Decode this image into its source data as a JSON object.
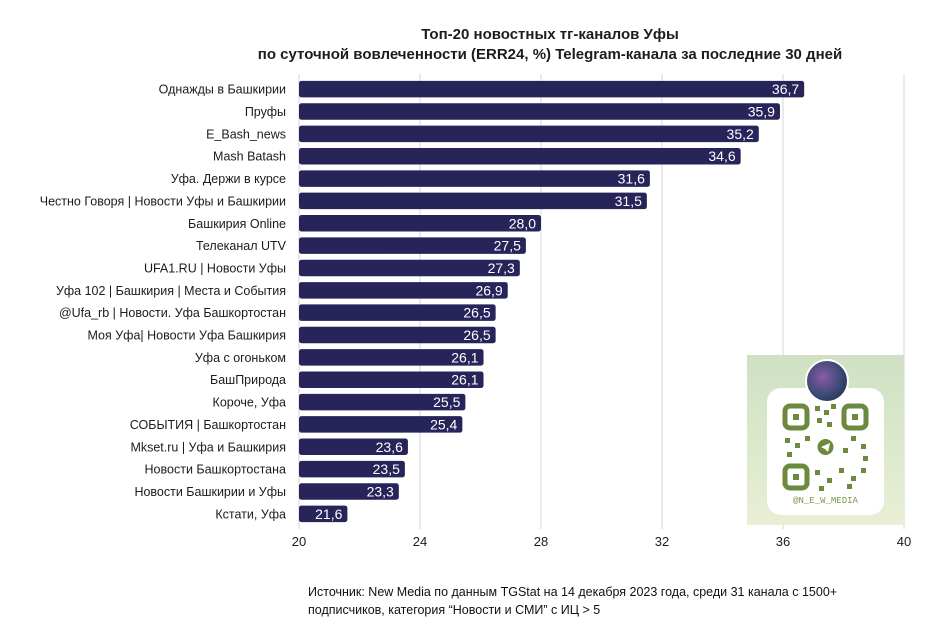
{
  "title_line1": "Топ-20 новостных тг-каналов Уфы",
  "title_line2": "по суточной вовлеченности (ERR24, %) Telegram-канала за последние 30 дней",
  "source_text": "Источник: New Media по данным TGStat на 14 декабря 2023 года, среди 31 канала с 1500+ подписчиков, категория “Новости и СМИ” с ИЦ > 5",
  "qr_handle": "@N_E_W_MEDIA",
  "colors": {
    "bar": "#262459",
    "grid": "#d6d6d6",
    "label": "#ffffff"
  },
  "chart_data": {
    "type": "bar",
    "orientation": "horizontal",
    "title": "Топ-20 новостных тг-каналов Уфы по суточной вовлеченности (ERR24, %) Telegram-канала за последние 30 дней",
    "categories": [
      "Однажды в Башкирии",
      "Пруфы",
      "E_Bash_news",
      "Mash Batash",
      "Уфа. Держи в курсе",
      "Честно Говоря | Новости Уфы и Башкирии",
      "Башкирия Online",
      "Телеканал UTV",
      "UFA1.RU | Новости Уфы",
      "Уфа 102 | Башкирия | Места и События",
      "@Ufa_rb | Новости. Уфа Башкортостан",
      "Моя Уфа| Новости Уфа Башкирия",
      "Уфа с огоньком",
      "БашПрирода",
      "Короче, Уфа",
      "СОБЫТИЯ | Башкортостан",
      "Mkset.ru | Уфа и Башкирия",
      "Новости Башкортостана",
      "Новости Башкирии и Уфы",
      "Кстати, Уфа"
    ],
    "values": [
      36.7,
      35.9,
      35.2,
      34.6,
      31.6,
      31.5,
      28.0,
      27.5,
      27.3,
      26.9,
      26.5,
      26.5,
      26.1,
      26.1,
      25.5,
      25.4,
      23.6,
      23.5,
      23.3,
      21.6
    ],
    "value_labels": [
      "36,7",
      "35,9",
      "35,2",
      "34,6",
      "31,6",
      "31,5",
      "28,0",
      "27,5",
      "27,3",
      "26,9",
      "26,5",
      "26,5",
      "26,1",
      "26,1",
      "25,5",
      "25,4",
      "23,6",
      "23,5",
      "23,3",
      "21,6"
    ],
    "xlim": [
      20,
      40
    ],
    "xticks": [
      20,
      24,
      28,
      32,
      36,
      40
    ],
    "grid": true,
    "legend": "none"
  }
}
